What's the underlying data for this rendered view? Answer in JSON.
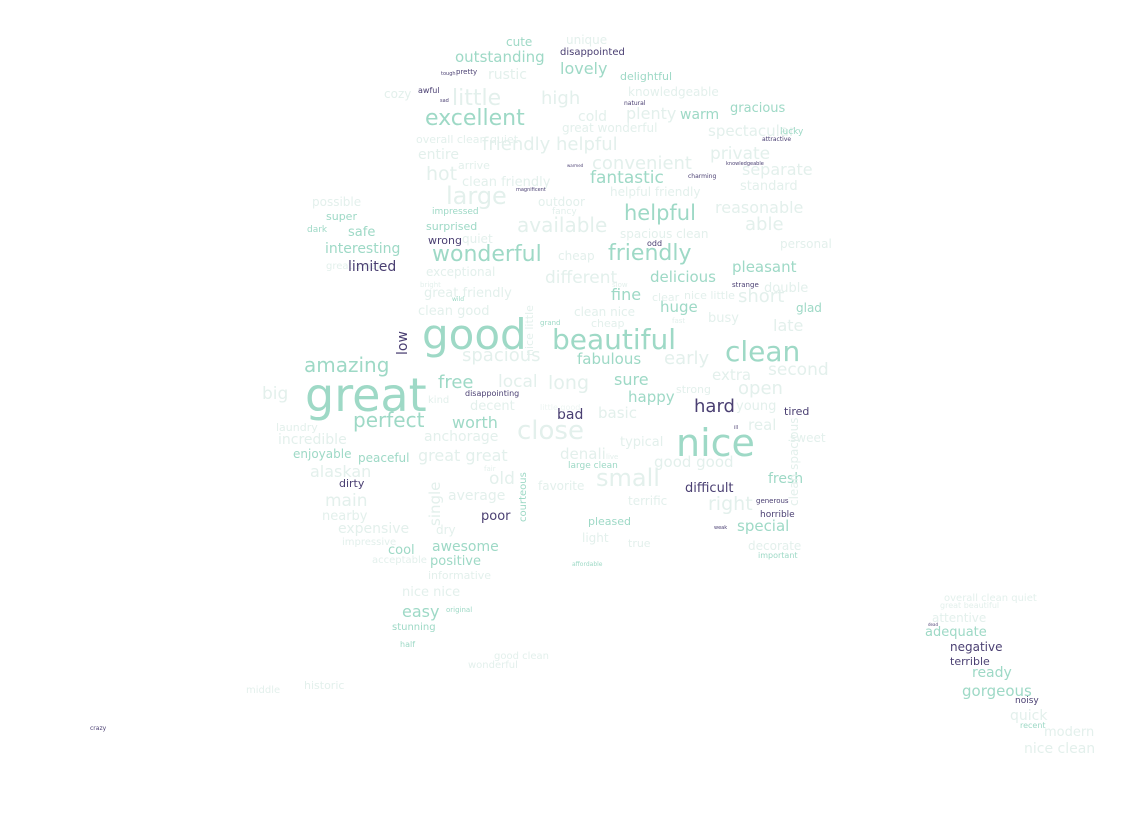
{
  "cloud": {
    "words": [
      {
        "text": "great",
        "tone": "mint"
      },
      {
        "text": "good",
        "tone": "mint"
      },
      {
        "text": "nice",
        "tone": "mint"
      },
      {
        "text": "beautiful",
        "tone": "mint"
      },
      {
        "text": "clean",
        "tone": "mint"
      },
      {
        "text": "excellent",
        "tone": "mint"
      },
      {
        "text": "wonderful",
        "tone": "mint"
      },
      {
        "text": "friendly",
        "tone": "mint"
      },
      {
        "text": "little",
        "tone": "pale"
      },
      {
        "text": "large",
        "tone": "pale"
      },
      {
        "text": "helpful",
        "tone": "mint"
      },
      {
        "text": "amazing",
        "tone": "mint"
      },
      {
        "text": "perfect",
        "tone": "mint"
      },
      {
        "text": "close",
        "tone": "pale"
      },
      {
        "text": "small",
        "tone": "pale"
      },
      {
        "text": "available",
        "tone": "pale"
      },
      {
        "text": "outstanding",
        "tone": "mint"
      },
      {
        "text": "lovely",
        "tone": "mint"
      },
      {
        "text": "high",
        "tone": "pale"
      },
      {
        "text": "friendly helpful",
        "tone": "pale"
      },
      {
        "text": "convenient",
        "tone": "pale"
      },
      {
        "text": "fantastic",
        "tone": "mint"
      },
      {
        "text": "hot",
        "tone": "pale"
      },
      {
        "text": "private",
        "tone": "pale"
      },
      {
        "text": "separate",
        "tone": "pale"
      },
      {
        "text": "able",
        "tone": "pale"
      },
      {
        "text": "reasonable",
        "tone": "pale"
      },
      {
        "text": "interesting",
        "tone": "mint"
      },
      {
        "text": "safe",
        "tone": "mint"
      },
      {
        "text": "different",
        "tone": "pale"
      },
      {
        "text": "delicious",
        "tone": "mint"
      },
      {
        "text": "pleasant",
        "tone": "mint"
      },
      {
        "text": "fine",
        "tone": "mint"
      },
      {
        "text": "short",
        "tone": "pale"
      },
      {
        "text": "huge",
        "tone": "mint"
      },
      {
        "text": "spacious",
        "tone": "pale"
      },
      {
        "text": "fabulous",
        "tone": "mint"
      },
      {
        "text": "early",
        "tone": "pale"
      },
      {
        "text": "free",
        "tone": "mint"
      },
      {
        "text": "long",
        "tone": "pale"
      },
      {
        "text": "sure",
        "tone": "mint"
      },
      {
        "text": "happy",
        "tone": "mint"
      },
      {
        "text": "open",
        "tone": "pale"
      },
      {
        "text": "extra",
        "tone": "pale"
      },
      {
        "text": "second",
        "tone": "pale"
      },
      {
        "text": "big",
        "tone": "pale"
      },
      {
        "text": "local",
        "tone": "pale"
      },
      {
        "text": "worth",
        "tone": "mint"
      },
      {
        "text": "anchorage",
        "tone": "pale"
      },
      {
        "text": "incredible",
        "tone": "pale"
      },
      {
        "text": "enjoyable",
        "tone": "mint"
      },
      {
        "text": "alaskan",
        "tone": "pale"
      },
      {
        "text": "peaceful",
        "tone": "mint"
      },
      {
        "text": "great great",
        "tone": "pale"
      },
      {
        "text": "denali",
        "tone": "pale"
      },
      {
        "text": "good good",
        "tone": "pale"
      },
      {
        "text": "old",
        "tone": "pale"
      },
      {
        "text": "average",
        "tone": "pale"
      },
      {
        "text": "main",
        "tone": "pale"
      },
      {
        "text": "expensive",
        "tone": "pale"
      },
      {
        "text": "awesome",
        "tone": "mint"
      },
      {
        "text": "positive",
        "tone": "mint"
      },
      {
        "text": "cool",
        "tone": "mint"
      },
      {
        "text": "easy",
        "tone": "mint"
      },
      {
        "text": "special",
        "tone": "mint"
      },
      {
        "text": "fresh",
        "tone": "mint"
      },
      {
        "text": "right",
        "tone": "pale"
      },
      {
        "text": "decorate",
        "tone": "pale"
      },
      {
        "text": "ready",
        "tone": "mint"
      },
      {
        "text": "gorgeous",
        "tone": "mint"
      },
      {
        "text": "adequate",
        "tone": "mint"
      },
      {
        "text": "quick",
        "tone": "pale"
      },
      {
        "text": "nice clean",
        "tone": "pale"
      },
      {
        "text": "modern",
        "tone": "pale"
      },
      {
        "text": "cozy",
        "tone": "pale"
      },
      {
        "text": "warm",
        "tone": "mint"
      },
      {
        "text": "gracious",
        "tone": "mint"
      },
      {
        "text": "spectacular",
        "tone": "pale"
      },
      {
        "text": "entire",
        "tone": "pale"
      },
      {
        "text": "cold",
        "tone": "pale"
      },
      {
        "text": "plenty",
        "tone": "pale"
      },
      {
        "text": "great wonderful",
        "tone": "pale"
      },
      {
        "text": "knowledgeable",
        "tone": "pale"
      },
      {
        "text": "rustic",
        "tone": "pale"
      },
      {
        "text": "cute",
        "tone": "mint"
      },
      {
        "text": "unique",
        "tone": "pale"
      },
      {
        "text": "delightful",
        "tone": "mint"
      },
      {
        "text": "clean friendly",
        "tone": "pale"
      },
      {
        "text": "great friendly",
        "tone": "pale"
      },
      {
        "text": "clean good",
        "tone": "pale"
      },
      {
        "text": "clean nice",
        "tone": "pale"
      },
      {
        "text": "late",
        "tone": "pale"
      },
      {
        "text": "busy",
        "tone": "pale"
      },
      {
        "text": "double",
        "tone": "pale"
      },
      {
        "text": "glad",
        "tone": "mint"
      },
      {
        "text": "young",
        "tone": "pale"
      },
      {
        "text": "real",
        "tone": "pale"
      },
      {
        "text": "basic",
        "tone": "pale"
      },
      {
        "text": "typical",
        "tone": "pale"
      },
      {
        "text": "pleased",
        "tone": "mint"
      },
      {
        "text": "light",
        "tone": "pale"
      },
      {
        "text": "true",
        "tone": "pale"
      },
      {
        "text": "stunning",
        "tone": "mint"
      },
      {
        "text": "nice nice",
        "tone": "pale"
      },
      {
        "text": "standard",
        "tone": "pale"
      },
      {
        "text": "personal",
        "tone": "pale"
      },
      {
        "text": "exceptional",
        "tone": "pale"
      },
      {
        "text": "possible",
        "tone": "pale"
      },
      {
        "text": "super",
        "tone": "mint"
      },
      {
        "text": "surprised",
        "tone": "mint"
      },
      {
        "text": "impressed",
        "tone": "mint"
      },
      {
        "text": "outdoor",
        "tone": "pale"
      },
      {
        "text": "decent",
        "tone": "pale"
      },
      {
        "text": "nearby",
        "tone": "pale"
      },
      {
        "text": "helpful friendly",
        "tone": "pale"
      },
      {
        "text": "spacious clean",
        "tone": "pale"
      },
      {
        "text": "disappointed",
        "tone": "purple"
      },
      {
        "text": "limited",
        "tone": "purple"
      },
      {
        "text": "hard",
        "tone": "purple"
      },
      {
        "text": "bad",
        "tone": "purple"
      },
      {
        "text": "low",
        "tone": "purple"
      },
      {
        "text": "difficult",
        "tone": "purple"
      },
      {
        "text": "poor",
        "tone": "purple"
      },
      {
        "text": "dirty",
        "tone": "purple"
      },
      {
        "text": "wrong",
        "tone": "purple"
      },
      {
        "text": "tired",
        "tone": "purple"
      },
      {
        "text": "negative",
        "tone": "purple"
      },
      {
        "text": "terrible",
        "tone": "purple"
      },
      {
        "text": "horrible",
        "tone": "purple"
      },
      {
        "text": "noisy",
        "tone": "purple"
      },
      {
        "text": "disappointing",
        "tone": "purple"
      },
      {
        "text": "odd",
        "tone": "purple"
      },
      {
        "text": "strange",
        "tone": "purple"
      },
      {
        "text": "awful",
        "tone": "purple"
      },
      {
        "text": "crazy",
        "tone": "purple"
      },
      {
        "text": "pretty",
        "tone": "purple"
      },
      {
        "text": "tough",
        "tone": "purple"
      },
      {
        "text": "sad",
        "tone": "purple"
      },
      {
        "text": "natural",
        "tone": "purple"
      },
      {
        "text": "magnificent",
        "tone": "purple"
      },
      {
        "text": "warmed",
        "tone": "purple"
      },
      {
        "text": "ill",
        "tone": "purple"
      },
      {
        "text": "weak",
        "tone": "purple"
      },
      {
        "text": "dead",
        "tone": "purple"
      },
      {
        "text": "attractive",
        "tone": "purple"
      },
      {
        "text": "charming",
        "tone": "purple"
      },
      {
        "text": "knowledgeable",
        "tone": "purple"
      },
      {
        "text": "generous",
        "tone": "purple"
      },
      {
        "text": "important",
        "tone": "mint"
      },
      {
        "text": "lucky",
        "tone": "mint"
      },
      {
        "text": "efficient",
        "tone": "mint"
      },
      {
        "text": "remote",
        "tone": "pale"
      },
      {
        "text": "fun",
        "tone": "mint"
      },
      {
        "text": "sunny",
        "tone": "mint"
      },
      {
        "text": "courteous",
        "tone": "mint"
      },
      {
        "text": "interested",
        "tone": "mint"
      },
      {
        "text": "attentive",
        "tone": "pale"
      },
      {
        "text": "recent",
        "tone": "pale"
      },
      {
        "text": "affordable",
        "tone": "pale"
      },
      {
        "text": "original",
        "tone": "mint"
      },
      {
        "text": "half",
        "tone": "pale"
      },
      {
        "text": "informative",
        "tone": "pale"
      },
      {
        "text": "acceptable",
        "tone": "mint"
      },
      {
        "text": "impressive",
        "tone": "mint"
      },
      {
        "text": "dark",
        "tone": "pale"
      },
      {
        "text": "great small",
        "tone": "pale"
      },
      {
        "text": "bright",
        "tone": "pale"
      },
      {
        "text": "wild",
        "tone": "pale"
      },
      {
        "text": "grand",
        "tone": "pale"
      },
      {
        "text": "historic",
        "tone": "pale"
      },
      {
        "text": "middle",
        "tone": "pale"
      },
      {
        "text": "great beautiful",
        "tone": "pale"
      },
      {
        "text": "overall clean quiet",
        "tone": "pale"
      },
      {
        "text": "arrive",
        "tone": "pale"
      },
      {
        "text": "quiet",
        "tone": "pale"
      },
      {
        "text": "cheap",
        "tone": "pale"
      },
      {
        "text": "single",
        "tone": "pale"
      },
      {
        "text": "favorite",
        "tone": "pale"
      },
      {
        "text": "terrific",
        "tone": "mint"
      },
      {
        "text": "clean spacious",
        "tone": "pale"
      },
      {
        "text": "large clean",
        "tone": "pale"
      },
      {
        "text": "dry",
        "tone": "pale"
      },
      {
        "text": "laundry",
        "tone": "pale"
      },
      {
        "text": "sweet",
        "tone": "pale"
      },
      {
        "text": "strong",
        "tone": "pale"
      },
      {
        "text": "fast",
        "tone": "pale"
      },
      {
        "text": "slow",
        "tone": "pale"
      },
      {
        "text": "clear",
        "tone": "pale"
      },
      {
        "text": "nice little",
        "tone": "pale"
      },
      {
        "text": "fancy",
        "tone": "pale"
      },
      {
        "text": "kind",
        "tone": "pale"
      },
      {
        "text": "fair",
        "tone": "pale"
      },
      {
        "text": "live",
        "tone": "pale"
      },
      {
        "text": "good clean",
        "tone": "pale"
      },
      {
        "text": "wonderful",
        "tone": "faint"
      },
      {
        "text": "little good",
        "tone": "faint"
      }
    ]
  }
}
